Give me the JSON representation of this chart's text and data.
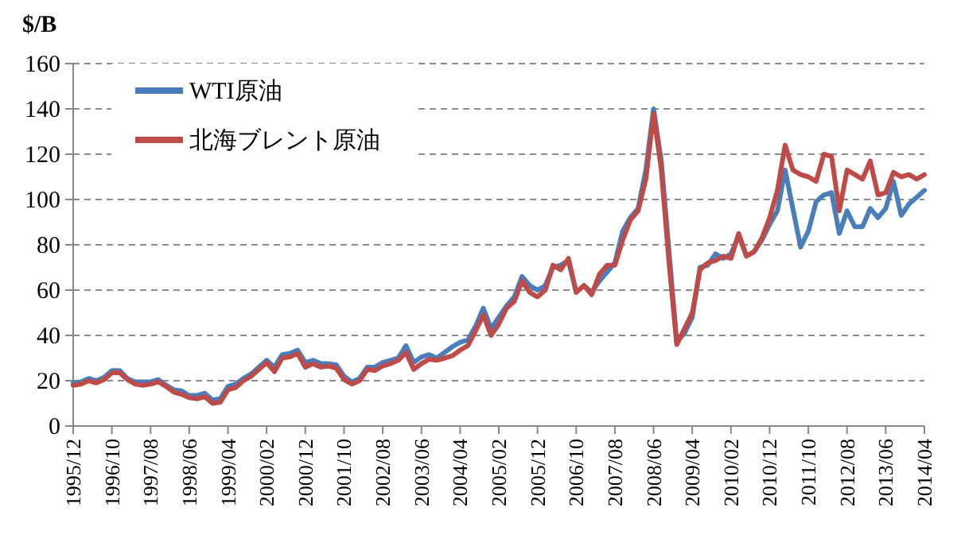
{
  "chart_data": {
    "type": "line",
    "ylabel": "$/B",
    "x": [
      "1995-12",
      "1996-02",
      "1996-04",
      "1996-06",
      "1996-08",
      "1996-10",
      "1996-12",
      "1997-02",
      "1997-04",
      "1997-06",
      "1997-08",
      "1997-10",
      "1997-12",
      "1998-02",
      "1998-04",
      "1998-06",
      "1998-08",
      "1998-10",
      "1998-12",
      "1999-02",
      "1999-04",
      "1999-06",
      "1999-08",
      "1999-10",
      "1999-12",
      "2000-02",
      "2000-04",
      "2000-06",
      "2000-08",
      "2000-10",
      "2000-12",
      "2001-02",
      "2001-04",
      "2001-06",
      "2001-08",
      "2001-10",
      "2001-12",
      "2002-02",
      "2002-04",
      "2002-06",
      "2002-08",
      "2002-10",
      "2002-12",
      "2003-02",
      "2003-04",
      "2003-06",
      "2003-08",
      "2003-10",
      "2003-12",
      "2004-02",
      "2004-04",
      "2004-06",
      "2004-08",
      "2004-10",
      "2004-12",
      "2005-02",
      "2005-04",
      "2005-06",
      "2005-08",
      "2005-10",
      "2005-12",
      "2006-02",
      "2006-04",
      "2006-06",
      "2006-08",
      "2006-10",
      "2006-12",
      "2007-02",
      "2007-04",
      "2007-06",
      "2007-08",
      "2007-10",
      "2007-12",
      "2008-02",
      "2008-04",
      "2008-06",
      "2008-08",
      "2008-10",
      "2008-12",
      "2009-02",
      "2009-04",
      "2009-06",
      "2009-08",
      "2009-10",
      "2009-12",
      "2010-02",
      "2010-04",
      "2010-06",
      "2010-08",
      "2010-10",
      "2010-12",
      "2011-02",
      "2011-04",
      "2011-06",
      "2011-08",
      "2011-10",
      "2011-12",
      "2012-02",
      "2012-04",
      "2012-06",
      "2012-08",
      "2012-10",
      "2012-12",
      "2013-02",
      "2013-04",
      "2013-06",
      "2013-08",
      "2013-10",
      "2013-12",
      "2014-02",
      "2014-04"
    ],
    "series": [
      {
        "name": "WTI原油",
        "color": "#4a7ebb",
        "values": [
          19,
          19.5,
          21,
          20,
          21.5,
          24.5,
          24.5,
          21,
          19.5,
          19.5,
          19.5,
          20.5,
          18,
          16,
          15.5,
          13.5,
          13.5,
          14.5,
          11.5,
          12,
          17.5,
          18.5,
          21,
          23,
          26,
          29,
          26,
          31.5,
          32,
          33.5,
          28,
          29,
          27.5,
          27.5,
          27,
          22,
          19.5,
          21,
          26,
          26,
          28,
          29,
          30,
          35.5,
          28,
          30.5,
          31.5,
          30,
          32.5,
          35,
          37,
          38,
          44,
          52,
          43,
          48,
          53,
          57,
          66,
          62,
          60,
          62,
          70,
          71,
          73,
          59,
          62,
          59,
          64,
          68,
          72,
          86,
          92,
          96,
          113,
          140,
          117,
          77,
          37,
          41,
          48,
          70,
          71,
          76,
          74,
          76,
          84,
          75,
          77,
          82,
          89,
          95,
          113,
          96,
          79,
          86,
          99,
          102,
          103,
          85,
          95,
          88,
          88,
          96,
          92,
          96,
          108,
          93,
          98,
          101,
          104
        ]
      },
      {
        "name": "北海ブレント原油",
        "color": "#be4b48",
        "values": [
          18,
          18.5,
          20,
          19,
          20.5,
          23.5,
          23.5,
          20.5,
          18.5,
          18,
          18.5,
          19.5,
          17.5,
          15,
          14,
          12.5,
          12,
          13,
          10,
          10.5,
          16,
          17,
          20,
          22,
          25,
          28,
          24,
          30,
          30.5,
          32,
          26,
          27.5,
          26,
          26.5,
          25.5,
          20.5,
          18.5,
          20,
          25,
          24.5,
          26.5,
          27.5,
          29,
          32.5,
          25,
          27.5,
          29.5,
          29,
          30,
          31,
          33.5,
          35.5,
          42,
          49,
          40,
          45,
          52,
          55,
          64,
          59,
          57,
          60,
          71,
          69,
          74,
          59,
          62,
          58,
          67,
          71,
          71,
          82,
          91,
          95,
          109,
          138,
          113,
          72,
          36,
          43,
          50,
          69,
          72,
          73,
          75,
          74,
          85,
          75,
          77,
          83,
          92,
          104,
          124,
          113,
          111,
          110,
          108,
          120,
          119,
          95,
          113,
          111,
          109,
          117,
          102,
          103,
          112,
          110,
          111,
          109,
          111
        ]
      }
    ],
    "xlim": [
      "1995-12",
      "2014-04"
    ],
    "xticks": [
      {
        "value": "1995-12",
        "label": "1995/12"
      },
      {
        "value": "1996-10",
        "label": "1996/10"
      },
      {
        "value": "1997-08",
        "label": "1997/08"
      },
      {
        "value": "1998-06",
        "label": "1998/06"
      },
      {
        "value": "1999-04",
        "label": "1999/04"
      },
      {
        "value": "2000-02",
        "label": "2000/02"
      },
      {
        "value": "2000-12",
        "label": "2000/12"
      },
      {
        "value": "2001-10",
        "label": "2001/10"
      },
      {
        "value": "2002-08",
        "label": "2002/08"
      },
      {
        "value": "2003-06",
        "label": "2003/06"
      },
      {
        "value": "2004-04",
        "label": "2004/04"
      },
      {
        "value": "2005-02",
        "label": "2005/02"
      },
      {
        "value": "2005-12",
        "label": "2005/12"
      },
      {
        "value": "2006-10",
        "label": "2006/10"
      },
      {
        "value": "2007-08",
        "label": "2007/08"
      },
      {
        "value": "2008-06",
        "label": "2008/06"
      },
      {
        "value": "2009-04",
        "label": "2009/04"
      },
      {
        "value": "2010-02",
        "label": "2010/02"
      },
      {
        "value": "2010-12",
        "label": "2010/12"
      },
      {
        "value": "2011-10",
        "label": "2011/10"
      },
      {
        "value": "2012-08",
        "label": "2012/08"
      },
      {
        "value": "2013-06",
        "label": "2013/06"
      },
      {
        "value": "2014-04",
        "label": "2014/04"
      }
    ],
    "ylim": [
      0,
      160
    ],
    "yticks": [
      0,
      20,
      40,
      60,
      80,
      100,
      120,
      140,
      160
    ],
    "grid": "y",
    "legend": "top left",
    "marker": "none",
    "line_style": "solid"
  }
}
